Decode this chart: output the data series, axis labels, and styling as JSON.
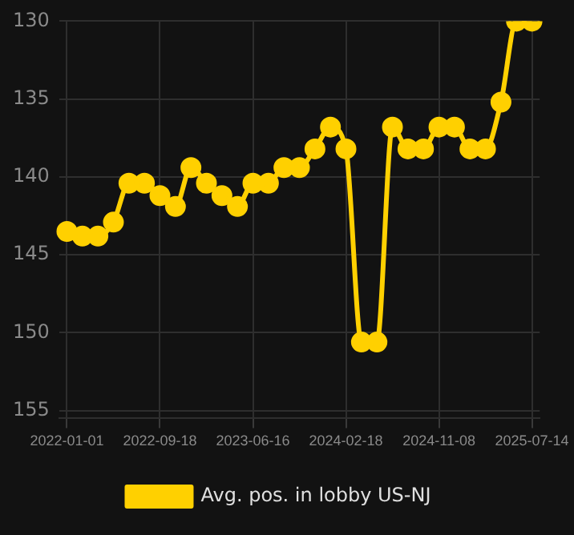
{
  "chart_data": {
    "type": "line",
    "categories": [
      "2022-01-01",
      null,
      null,
      null,
      null,
      null,
      "2022-09-18",
      null,
      null,
      null,
      null,
      null,
      "2023-06-16",
      null,
      null,
      null,
      null,
      null,
      "2024-02-18",
      null,
      null,
      null,
      null,
      null,
      "2024-11-08",
      null,
      null,
      null,
      null,
      null,
      "2025-07-14"
    ],
    "series": [
      {
        "name": "Avg. pos. in lobby US-NJ",
        "color": "#ffd000",
        "values": [
          143.5,
          143.8,
          143.8,
          142.9,
          140.4,
          140.4,
          141.2,
          141.9,
          139.4,
          140.4,
          141.2,
          141.9,
          140.4,
          140.4,
          139.4,
          139.4,
          138.2,
          136.8,
          138.2,
          150.6,
          150.6,
          136.8,
          138.2,
          138.2,
          136.8,
          136.8,
          138.2,
          138.2,
          135.2,
          130,
          130
        ]
      }
    ],
    "ylim": [
      155.5,
      130
    ],
    "yticks": [
      130,
      135,
      140,
      145,
      150,
      155
    ],
    "grid": true,
    "legend": "bottom",
    "marker": "circle",
    "line_style": "solid"
  }
}
